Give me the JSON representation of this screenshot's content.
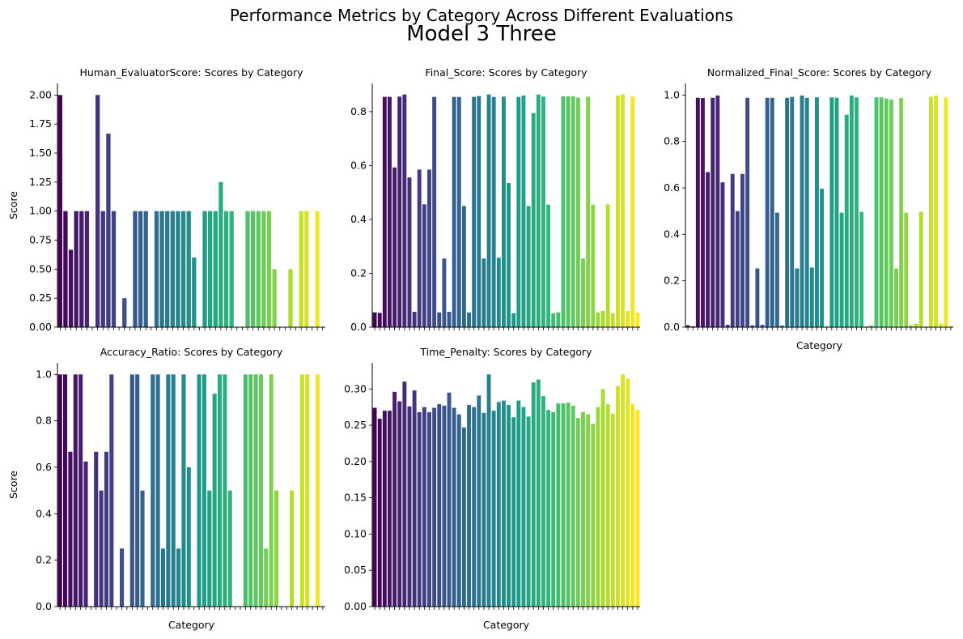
{
  "title": "Performance Metrics by Category Across Different Evaluations",
  "subtitle": "Model 3 Three",
  "subtitle_color": "#008000",
  "palette": "viridis",
  "chart_data": [
    {
      "type": "bar",
      "title": "Human_EvaluatorScore: Scores by Category",
      "xlabel": "",
      "ylabel": "Score",
      "ylim": [
        0,
        2.1
      ],
      "yticks": [
        0.0,
        0.25,
        0.5,
        0.75,
        1.0,
        1.25,
        1.5,
        1.75,
        2.0
      ],
      "ytick_labels": [
        "0.00",
        "0.25",
        "0.50",
        "0.75",
        "1.00",
        "1.25",
        "1.50",
        "1.75",
        "2.00"
      ],
      "values": [
        2.0,
        1.0,
        0.667,
        1.0,
        1.0,
        1.0,
        0,
        2.0,
        1.0,
        1.667,
        1.0,
        0,
        0.25,
        0,
        1.0,
        1.0,
        1.0,
        0,
        1.0,
        1.0,
        1.0,
        1.0,
        1.0,
        1.0,
        1.0,
        0.6,
        0,
        1.0,
        1.0,
        1.0,
        1.25,
        1.0,
        1.0,
        0,
        0,
        1.0,
        1.0,
        1.0,
        1.0,
        1.0,
        0.5,
        0,
        0,
        0.5,
        0,
        1.0,
        1.0,
        0,
        1.0,
        0
      ]
    },
    {
      "type": "bar",
      "title": "Final_Score: Scores by Category",
      "xlabel": "",
      "ylabel": "",
      "ylim": [
        0,
        0.905
      ],
      "yticks": [
        0.0,
        0.2,
        0.4,
        0.6,
        0.8
      ],
      "ytick_labels": [
        "0.0",
        "0.2",
        "0.4",
        "0.6",
        "0.8"
      ],
      "values": [
        0.055,
        0.053,
        0.855,
        0.855,
        0.593,
        0.856,
        0.864,
        0.556,
        0.057,
        0.585,
        0.456,
        0.585,
        0.855,
        0.055,
        0.255,
        0.057,
        0.855,
        0.855,
        0.45,
        0.055,
        0.855,
        0.858,
        0.255,
        0.864,
        0.855,
        0.258,
        0.856,
        0.535,
        0.052,
        0.855,
        0.86,
        0.45,
        0.795,
        0.864,
        0.856,
        0.455,
        0.052,
        0.055,
        0.857,
        0.857,
        0.857,
        0.852,
        0.255,
        0.856,
        0.455,
        0.055,
        0.06,
        0.456,
        0.052,
        0.86,
        0.864,
        0.06,
        0.856,
        0.054
      ]
    },
    {
      "type": "bar",
      "title": "Normalized_Final_Score: Scores by Category",
      "xlabel": "Category",
      "ylabel": "",
      "ylim": [
        0,
        1.05
      ],
      "yticks": [
        0.0,
        0.2,
        0.4,
        0.6,
        0.8,
        1.0
      ],
      "ytick_labels": [
        "0.0",
        "0.2",
        "0.4",
        "0.6",
        "0.8",
        "1.0"
      ],
      "values": [
        0.008,
        0.004,
        0.988,
        0.987,
        0.668,
        0.988,
        0.998,
        0.624,
        0.01,
        0.66,
        0.5,
        0.66,
        0.988,
        0.008,
        0.253,
        0.01,
        0.988,
        0.988,
        0.493,
        0.007,
        0.988,
        0.992,
        0.253,
        0.998,
        0.988,
        0.257,
        0.99,
        0.597,
        0.003,
        0.99,
        0.988,
        0.493,
        0.915,
        0.998,
        0.99,
        0.497,
        0.003,
        0.007,
        0.99,
        0.99,
        0.985,
        0.98,
        0.253,
        0.987,
        0.493,
        0.008,
        0.015,
        0.497,
        0.003,
        0.993,
        0.998,
        0.015,
        0.99,
        0.005
      ]
    },
    {
      "type": "bar",
      "title": "Accuracy_Ratio: Scores by Category",
      "xlabel": "Category",
      "ylabel": "Score",
      "ylim": [
        0,
        1.05
      ],
      "yticks": [
        0.0,
        0.2,
        0.4,
        0.6,
        0.8,
        1.0
      ],
      "ytick_labels": [
        "0.0",
        "0.2",
        "0.4",
        "0.6",
        "0.8",
        "1.0"
      ],
      "values": [
        1.0,
        1.0,
        0.667,
        1.0,
        1.0,
        0.625,
        0,
        0.667,
        0.5,
        0.667,
        1.0,
        0,
        0.25,
        0,
        1.0,
        1.0,
        0.5,
        0,
        1.0,
        1.0,
        0.25,
        1.0,
        1.0,
        0.25,
        1.0,
        0.6,
        0,
        1.0,
        1.0,
        0.5,
        0.917,
        1.0,
        1.0,
        0.5,
        0,
        0,
        1.0,
        1.0,
        1.0,
        1.0,
        0.25,
        1.0,
        0.5,
        0,
        0,
        0.5,
        0,
        1.0,
        1.0,
        0,
        1.0,
        0
      ]
    },
    {
      "type": "bar",
      "title": "Time_Penalty: Scores by Category",
      "xlabel": "Category",
      "ylabel": "",
      "ylim": [
        0,
        0.336
      ],
      "yticks": [
        0.0,
        0.05,
        0.1,
        0.15,
        0.2,
        0.25,
        0.3
      ],
      "ytick_labels": [
        "0.00",
        "0.05",
        "0.10",
        "0.15",
        "0.20",
        "0.25",
        "0.30"
      ],
      "values": [
        0.274,
        0.259,
        0.27,
        0.27,
        0.296,
        0.283,
        0.31,
        0.276,
        0.298,
        0.268,
        0.275,
        0.268,
        0.274,
        0.279,
        0.277,
        0.295,
        0.274,
        0.265,
        0.247,
        0.278,
        0.275,
        0.291,
        0.267,
        0.32,
        0.27,
        0.282,
        0.284,
        0.278,
        0.261,
        0.284,
        0.275,
        0.262,
        0.309,
        0.313,
        0.29,
        0.271,
        0.268,
        0.28,
        0.28,
        0.281,
        0.277,
        0.26,
        0.268,
        0.265,
        0.252,
        0.275,
        0.3,
        0.279,
        0.266,
        0.304,
        0.32,
        0.314,
        0.279,
        0.271
      ]
    }
  ]
}
